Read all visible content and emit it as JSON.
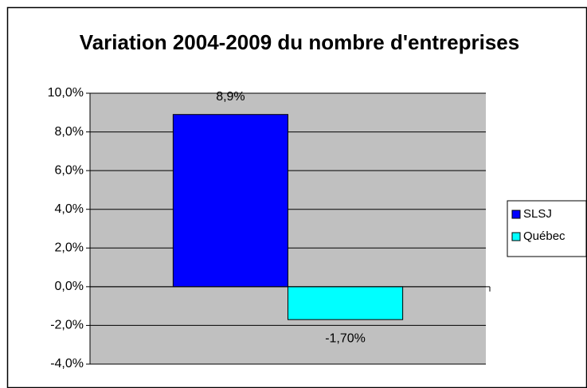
{
  "chart_data": {
    "type": "bar",
    "title": "Variation 2004-2009 du nombre d'entreprises",
    "categories": [
      null
    ],
    "series": [
      {
        "name": "SLSJ",
        "color": "#0000ff",
        "values": [
          8.9
        ],
        "value_labels": [
          "8,9%"
        ]
      },
      {
        "name": "Québec",
        "color": "#00ffff",
        "values": [
          -1.7
        ],
        "value_labels": [
          "-1,70%"
        ]
      }
    ],
    "ylim": [
      -4,
      10
    ],
    "yticks": [
      {
        "value": -4,
        "label": "-4,0%"
      },
      {
        "value": -2,
        "label": "-2,0%"
      },
      {
        "value": 0,
        "label": "0,0%"
      },
      {
        "value": 2,
        "label": "2,0%"
      },
      {
        "value": 4,
        "label": "4,0%"
      },
      {
        "value": 6,
        "label": "6,0%"
      },
      {
        "value": 8,
        "label": "8,0%"
      },
      {
        "value": 10,
        "label": "10,0%"
      }
    ],
    "grid": true,
    "legend": "right"
  }
}
